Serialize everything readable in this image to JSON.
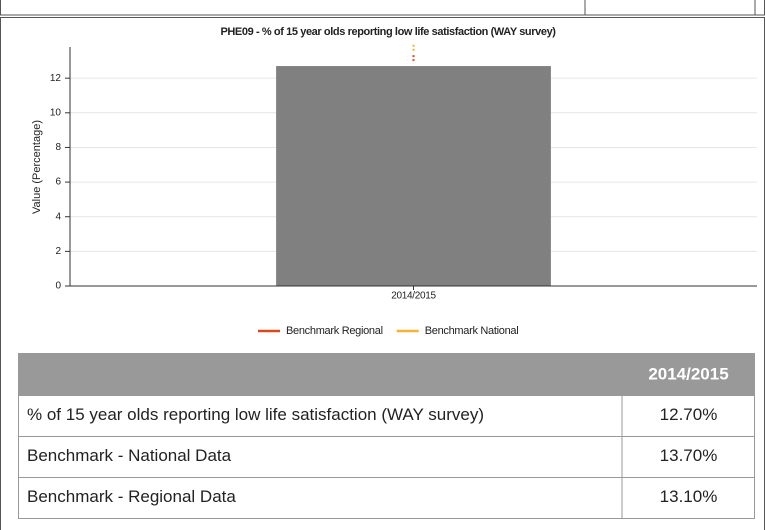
{
  "chart_data": {
    "type": "bar",
    "title": "PHE09 - % of 15 year olds reporting low life satisfaction (WAY survey)",
    "y_label": "Value (Percentage)",
    "categories": [
      "2014/2015"
    ],
    "values": [
      12.7
    ],
    "color": "#808080",
    "benchmarks": [
      {
        "name": "Benchmark Regional",
        "color": "#d84a1b",
        "value": 13.1
      },
      {
        "name": "Benchmark National",
        "color": "#f5b335",
        "value": 13.7
      }
    ],
    "ylim": [
      0,
      13.8
    ],
    "yticks": [
      0,
      2,
      4,
      6,
      8,
      10,
      12
    ],
    "grid": true
  },
  "table": {
    "columns": [
      "2014/2015"
    ],
    "rows": [
      [
        "% of 15 year olds reporting low life satisfaction (WAY survey)",
        "12.70%"
      ],
      [
        "Benchmark - National Data",
        "13.70%"
      ],
      [
        "Benchmark - Regional Data",
        "13.10%"
      ]
    ]
  }
}
